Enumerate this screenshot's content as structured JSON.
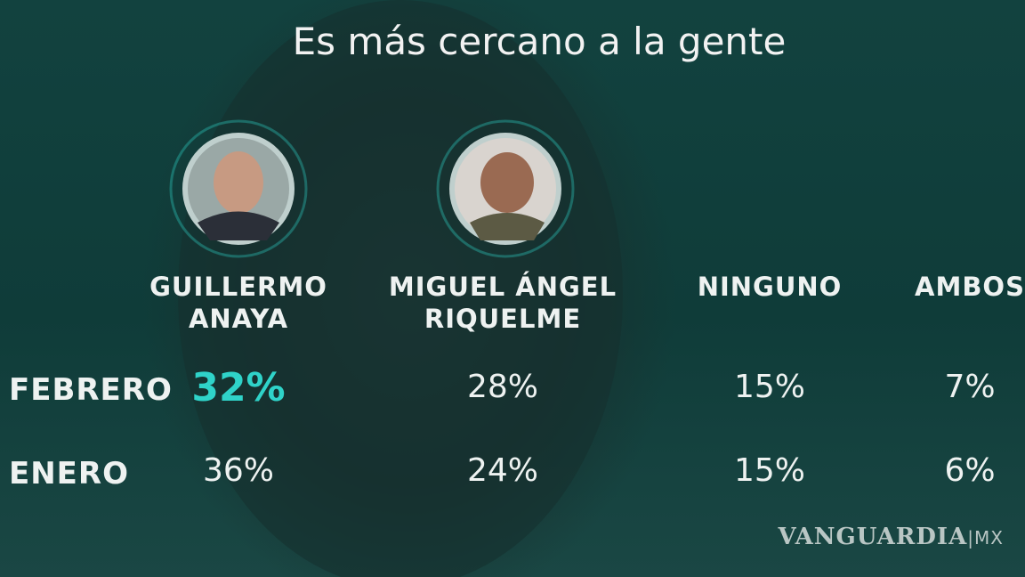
{
  "title": "Es más cercano a la gente",
  "table": {
    "columns": [
      {
        "lines": [
          "GUILLERMO",
          "ANAYA"
        ]
      },
      {
        "lines": [
          "MIGUEL ÁNGEL",
          "RIQUELME"
        ]
      },
      {
        "lines": [
          "NINGUNO"
        ]
      },
      {
        "lines": [
          "AMBOS"
        ]
      }
    ],
    "rows": [
      {
        "label": "FEBRERO",
        "cells": [
          "32%",
          "28%",
          "15%",
          "7%"
        ]
      },
      {
        "label": "ENERO",
        "cells": [
          "36%",
          "24%",
          "15%",
          "6%"
        ]
      }
    ]
  },
  "watermark": {
    "brand": "VANGUARDIA",
    "suffix": "MX"
  }
}
